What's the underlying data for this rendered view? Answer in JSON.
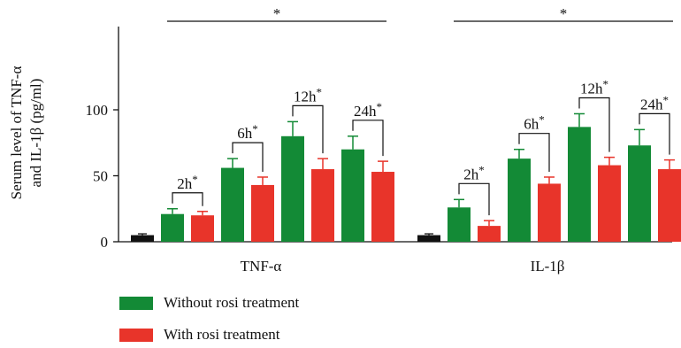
{
  "chart_data": {
    "type": "bar",
    "ylabel_lines": [
      "Serum level of TNF-α",
      "and IL-1β (pg/ml)"
    ],
    "ylim": [
      0,
      160
    ],
    "yticks": [
      "0",
      "50",
      "100"
    ],
    "ytick_values": [
      0,
      50,
      100
    ],
    "grid": false,
    "groups": [
      {
        "name": "TNF-α",
        "control": {
          "value": 5,
          "err": 1
        },
        "time_points": [
          {
            "label": "2h",
            "without": 21,
            "without_err": 4,
            "with": 20,
            "with_err": 3
          },
          {
            "label": "6h",
            "without": 56,
            "without_err": 7,
            "with": 43,
            "with_err": 6
          },
          {
            "label": "12h",
            "without": 80,
            "without_err": 11,
            "with": 55,
            "with_err": 8
          },
          {
            "label": "24h",
            "without": 70,
            "without_err": 10,
            "with": 53,
            "with_err": 8
          }
        ]
      },
      {
        "name": "IL-1β",
        "control": {
          "value": 5,
          "err": 1
        },
        "time_points": [
          {
            "label": "2h",
            "without": 26,
            "without_err": 6,
            "with": 12,
            "with_err": 4
          },
          {
            "label": "6h",
            "without": 63,
            "without_err": 7,
            "with": 44,
            "with_err": 5
          },
          {
            "label": "12h",
            "without": 87,
            "without_err": 10,
            "with": 58,
            "with_err": 6
          },
          {
            "label": "24h",
            "without": 73,
            "without_err": 12,
            "with": 55,
            "with_err": 7
          }
        ]
      }
    ],
    "significance_mark": "*",
    "series": [
      {
        "name": "Without rosi treatment",
        "color": "#138a36"
      },
      {
        "name": "With rosi treatment",
        "color": "#e8342a"
      }
    ],
    "control_color": "#111111"
  },
  "legend": {
    "without_label": "Without rosi treatment",
    "with_label": "With rosi treatment"
  }
}
